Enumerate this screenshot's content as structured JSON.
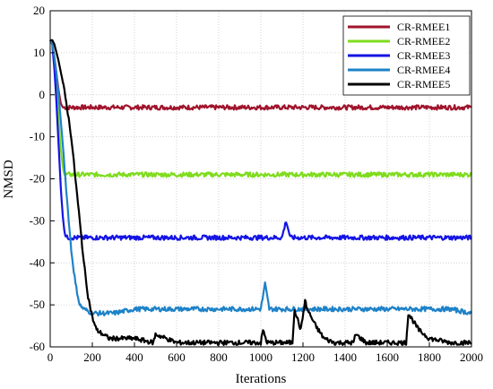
{
  "chart_data": {
    "type": "line",
    "xlabel": "Iterations",
    "ylabel": "NMSD",
    "xlim": [
      0,
      2000
    ],
    "ylim": [
      -60,
      20
    ],
    "xticks": [
      0,
      200,
      400,
      600,
      800,
      1000,
      1200,
      1400,
      1600,
      1800,
      2000
    ],
    "yticks": [
      20,
      10,
      0,
      -10,
      -20,
      -30,
      -40,
      -50,
      -60
    ],
    "xtick_labels": [
      "0",
      "200",
      "400",
      "600",
      "800",
      "1000",
      "1200",
      "1400",
      "1600",
      "1800",
      "2000"
    ],
    "ytick_labels": [
      "20",
      "10",
      "0",
      "-10",
      "-20",
      "-30",
      "-40",
      "-50",
      "-60"
    ],
    "grid": true,
    "legend_position": "top-right",
    "series": [
      {
        "name": "CR-RMEE1",
        "color": "#a0142c",
        "x": [
          0,
          10,
          20,
          30,
          40,
          50,
          60,
          80,
          100,
          150,
          200,
          300,
          400,
          500,
          600,
          700,
          800,
          900,
          1000,
          1100,
          1200,
          1300,
          1400,
          1500,
          1600,
          1700,
          1800,
          1900,
          2000
        ],
        "y": [
          13,
          12,
          9,
          5,
          1,
          -2,
          -3,
          -3,
          -3,
          -3,
          -3,
          -3,
          -3,
          -3,
          -3,
          -3,
          -3,
          -3,
          -3,
          -3,
          -3,
          -3,
          -3,
          -3,
          -3,
          -3,
          -3,
          -3,
          -3
        ]
      },
      {
        "name": "CR-RMEE2",
        "color": "#7fdc1e",
        "x": [
          0,
          10,
          20,
          30,
          40,
          50,
          60,
          70,
          80,
          100,
          150,
          200,
          300,
          400,
          500,
          600,
          700,
          800,
          900,
          1000,
          1100,
          1200,
          1300,
          1400,
          1500,
          1600,
          1700,
          1800,
          1900,
          2000
        ],
        "y": [
          13,
          12,
          7,
          1,
          -6,
          -13,
          -17,
          -19,
          -19,
          -19,
          -19,
          -19,
          -19,
          -19,
          -19,
          -19,
          -19,
          -19,
          -19,
          -19,
          -19,
          -19,
          -19,
          -19,
          -19,
          -19,
          -19,
          -19,
          -19,
          -19
        ]
      },
      {
        "name": "CR-RMEE3",
        "color": "#1414e6",
        "x": [
          0,
          10,
          20,
          30,
          40,
          50,
          60,
          70,
          80,
          100,
          150,
          200,
          300,
          400,
          500,
          600,
          700,
          800,
          900,
          1000,
          1100,
          1120,
          1140,
          1200,
          1300,
          1400,
          1500,
          1600,
          1700,
          1800,
          1900,
          2000
        ],
        "y": [
          13,
          12,
          6,
          -2,
          -12,
          -22,
          -29,
          -33,
          -34,
          -34,
          -34,
          -34,
          -34,
          -34,
          -34,
          -34,
          -34,
          -34,
          -34,
          -34,
          -34,
          -30,
          -34,
          -34,
          -34,
          -34,
          -34,
          -34,
          -34,
          -34,
          -34,
          -34
        ]
      },
      {
        "name": "CR-RMEE4",
        "color": "#1e82c8",
        "x": [
          0,
          10,
          20,
          40,
          60,
          80,
          100,
          120,
          140,
          160,
          200,
          300,
          400,
          500,
          600,
          700,
          800,
          900,
          1000,
          1020,
          1040,
          1100,
          1200,
          1300,
          1400,
          1500,
          1600,
          1700,
          1800,
          1900,
          2000
        ],
        "y": [
          13,
          12,
          9,
          0,
          -12,
          -25,
          -37,
          -45,
          -50,
          -51,
          -52,
          -52,
          -51,
          -51,
          -51,
          -51,
          -51,
          -51,
          -51,
          -45,
          -51,
          -51,
          -51,
          -51,
          -51,
          -51,
          -51,
          -51,
          -51,
          -51,
          -52
        ]
      },
      {
        "name": "CR-RMEE5",
        "color": "#000000",
        "x": [
          0,
          10,
          20,
          40,
          60,
          80,
          100,
          120,
          140,
          160,
          180,
          200,
          220,
          250,
          280,
          300,
          400,
          490,
          500,
          600,
          700,
          800,
          900,
          1000,
          1010,
          1030,
          1100,
          1150,
          1160,
          1190,
          1210,
          1220,
          1260,
          1300,
          1350,
          1400,
          1440,
          1450,
          1500,
          1600,
          1650,
          1690,
          1700,
          1750,
          1800,
          1900,
          2000
        ],
        "y": [
          13,
          13,
          12,
          8,
          3,
          -3,
          -10,
          -20,
          -30,
          -40,
          -48,
          -53,
          -56,
          -57,
          -58,
          -58,
          -58,
          -59,
          -57,
          -59,
          -59,
          -59,
          -59,
          -59,
          -56,
          -59,
          -59,
          -59,
          -51,
          -56,
          -49,
          -51,
          -55,
          -58,
          -59,
          -59,
          -59,
          -57,
          -59,
          -59,
          -59,
          -59,
          -52,
          -56,
          -58,
          -59,
          -59
        ]
      }
    ]
  }
}
